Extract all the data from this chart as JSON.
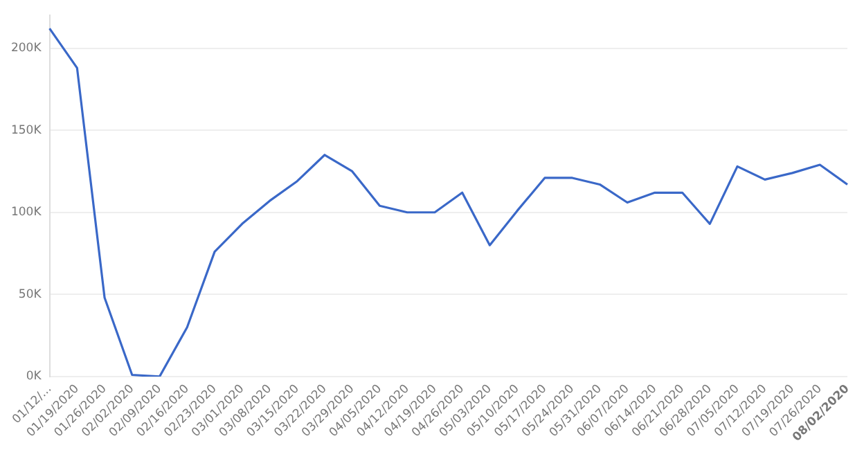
{
  "chart_data": {
    "type": "line",
    "categories": [
      "01/12/...",
      "01/19/2020",
      "01/26/2020",
      "02/02/2020",
      "02/09/2020",
      "02/16/2020",
      "02/23/2020",
      "03/01/2020",
      "03/08/2020",
      "03/15/2020",
      "03/22/2020",
      "03/29/2020",
      "04/05/2020",
      "04/12/2020",
      "04/19/2020",
      "04/26/2020",
      "05/03/2020",
      "05/10/2020",
      "05/17/2020",
      "05/24/2020",
      "05/31/2020",
      "06/07/2020",
      "06/14/2020",
      "06/21/2020",
      "06/28/2020",
      "07/05/2020",
      "07/12/2020",
      "07/19/2020",
      "07/26/2020",
      "08/02/2020"
    ],
    "series": [
      {
        "color": "#3a68c8",
        "values": [
          212000,
          188000,
          48000,
          1000,
          0,
          30000,
          76000,
          93000,
          107000,
          119000,
          135000,
          125000,
          104000,
          100000,
          100000,
          112000,
          80000,
          101000,
          121000,
          121000,
          117000,
          106000,
          112000,
          112000,
          93000,
          128000,
          120000,
          124000,
          129000,
          117000
        ]
      }
    ],
    "yticks": [
      {
        "value": 0,
        "label": "0K"
      },
      {
        "value": 50000,
        "label": "50K"
      },
      {
        "value": 100000,
        "label": "100K"
      },
      {
        "value": 150000,
        "label": "150K"
      },
      {
        "value": 200000,
        "label": "200K"
      }
    ],
    "ylim": [
      0,
      220000
    ],
    "grid": "y",
    "legend": false,
    "marker": "none",
    "line_style": "solid"
  }
}
